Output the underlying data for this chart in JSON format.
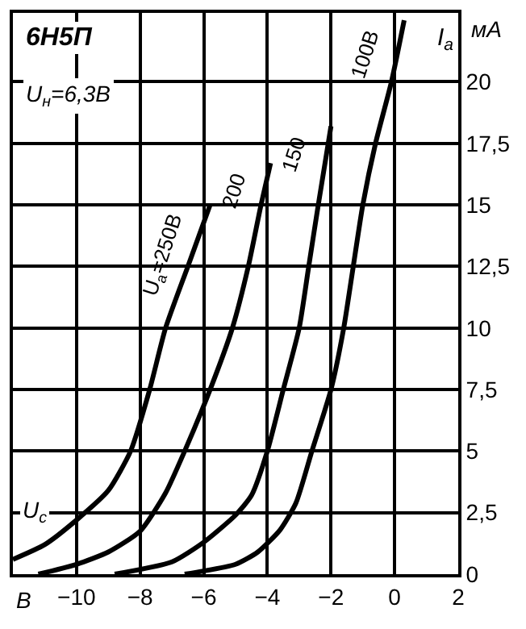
{
  "chart_data": {
    "type": "line",
    "title": "6Н5П",
    "subtitle": "U$_{н}$=6,3В",
    "xlabel": "U$_{c}$",
    "ylabel": "I$_{a}$",
    "annotations": [
      "мА",
      "В"
    ],
    "series": [
      {
        "name": "U$_{a}$=250В",
        "color": "#000000",
        "x": [
          -12,
          -11,
          -10,
          -9,
          -8.3,
          -7.7,
          -7.2,
          -6.5,
          -5.8
        ],
        "values": [
          0.6,
          1.2,
          2.2,
          3.4,
          5,
          7.5,
          10,
          12.5,
          15
        ]
      },
      {
        "name": "200",
        "color": "#000000",
        "x": [
          -11.2,
          -10,
          -9,
          -8,
          -7.2,
          -6.6,
          -5.8,
          -5.1,
          -4.6,
          -4.2,
          -3.9
        ],
        "values": [
          0,
          0.4,
          0.9,
          1.75,
          3.3,
          5,
          7.5,
          10,
          12.5,
          15,
          16.7
        ]
      },
      {
        "name": "150",
        "color": "#000000",
        "x": [
          -8.8,
          -7,
          -6,
          -5,
          -4.5,
          -4,
          -3.5,
          -3.0,
          -2.7,
          -2.4,
          -2.0
        ],
        "values": [
          0,
          0.5,
          1.3,
          2.4,
          3.2,
          5,
          7.5,
          10,
          12.5,
          15,
          18.2
        ]
      },
      {
        "name": "100В",
        "color": "#000000",
        "x": [
          -6.6,
          -5,
          -4.3,
          -3.6,
          -3.1,
          -2.6,
          -2,
          -1.6,
          -1.3,
          -1.0,
          -0.6,
          -0.1,
          0.3
        ],
        "values": [
          0,
          0.4,
          0.9,
          1.8,
          2.9,
          5,
          7.5,
          10,
          12.5,
          15,
          17.5,
          20,
          22.5
        ]
      }
    ],
    "xlim": [
      -12,
      2
    ],
    "xticks": [
      -10,
      -8,
      -6,
      -4,
      -2,
      0,
      2
    ],
    "ylim": [
      0,
      22.8
    ],
    "yticks": [
      0,
      {
        "value": 2.5,
        "label": "2,5"
      },
      5,
      {
        "value": 7.5,
        "label": "7,5"
      },
      10,
      {
        "value": 12.5,
        "label": "12,5"
      },
      15,
      {
        "value": 17.5,
        "label": "17,5"
      },
      20
    ],
    "grid": true,
    "marker": "none",
    "line_style": "solid"
  }
}
